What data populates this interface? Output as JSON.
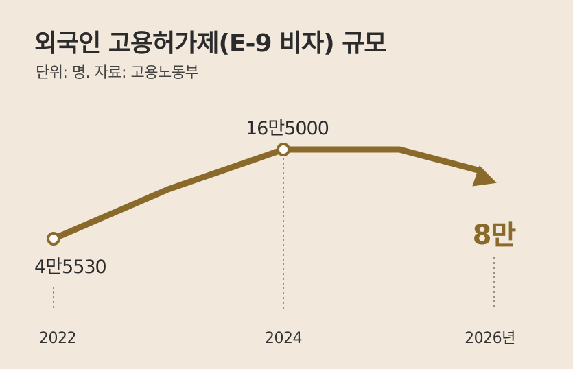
{
  "chart": {
    "title": "외국인 고용허가제(E-9 비자) 규모",
    "subtitle": "단위: 명. 자료: 고용노동부"
  },
  "colors": {
    "line": "#8a6a2a",
    "background": "#f2e9dc",
    "marker_fill": "#ffffff",
    "text": "#2b2b2b"
  },
  "chart_data": {
    "type": "line",
    "title": "외국인 고용허가제(E-9 비자) 규모",
    "subtitle": "단위: 명. 자료: 고용노동부",
    "x": [
      "2022",
      "2024",
      "2026년"
    ],
    "values": [
      45530,
      165000,
      80000
    ],
    "data_labels": [
      "4만5530",
      "16만5000",
      "8만"
    ],
    "ylabel": "",
    "xlabel": "",
    "grid": false
  }
}
